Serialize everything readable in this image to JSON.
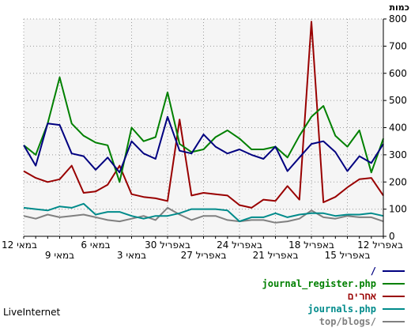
{
  "chart_data": {
    "type": "line",
    "ylabel": "כמות",
    "ylim": [
      0,
      800
    ],
    "yticks": [
      0,
      100,
      200,
      300,
      400,
      500,
      600,
      700,
      800
    ],
    "grid": true,
    "x": [
      "12 במאי",
      "11 במאי",
      "10 במאי",
      "9 במאי",
      "8 במאי",
      "7 במאי",
      "6 במאי",
      "5 במאי",
      "4 במאי",
      "3 במאי",
      "2 במאי",
      "1 במאי",
      "30 באפריל",
      "29 באפריל",
      "28 באפריל",
      "27 באפריל",
      "26 באפריל",
      "25 באפריל",
      "24 באפריל",
      "23 באפריל",
      "22 באפריל",
      "21 באפריל",
      "20 באפריל",
      "19 באפריל",
      "18 באפריל",
      "17 באפריל",
      "16 באפריל",
      "15 באפריל",
      "14 באפריל",
      "13 באפריל",
      "12 באפריל"
    ],
    "xtick_labels": [
      {
        "index": 0,
        "label": "12 במאי"
      },
      {
        "index": 3,
        "label": "9 במאי"
      },
      {
        "index": 6,
        "label": "6 במאי"
      },
      {
        "index": 9,
        "label": "3 במאי"
      },
      {
        "index": 12,
        "label": "30 באפריל"
      },
      {
        "index": 15,
        "label": "27 באפריל"
      },
      {
        "index": 18,
        "label": "24 באפריל"
      },
      {
        "index": 21,
        "label": "21 באפריל"
      },
      {
        "index": 24,
        "label": "18 באפריל"
      },
      {
        "index": 27,
        "label": "15 באפריל"
      },
      {
        "index": 30,
        "label": "12 באפריל"
      }
    ],
    "series": [
      {
        "name": "/",
        "color": "#000080",
        "values": [
          335,
          260,
          415,
          410,
          305,
          295,
          245,
          290,
          235,
          350,
          305,
          285,
          440,
          315,
          305,
          375,
          330,
          305,
          320,
          300,
          285,
          330,
          240,
          290,
          340,
          350,
          310,
          240,
          295,
          270,
          340
        ]
      },
      {
        "name": "journal_register.php",
        "color": "#008000",
        "values": [
          335,
          300,
          415,
          585,
          415,
          370,
          345,
          335,
          200,
          400,
          350,
          365,
          530,
          340,
          310,
          320,
          365,
          390,
          360,
          320,
          320,
          330,
          290,
          370,
          440,
          480,
          370,
          330,
          390,
          235,
          360
        ]
      },
      {
        "name": "אחרים",
        "color": "#990000",
        "values": [
          240,
          215,
          200,
          210,
          260,
          160,
          165,
          190,
          260,
          155,
          145,
          140,
          130,
          430,
          150,
          160,
          155,
          150,
          115,
          105,
          135,
          130,
          185,
          135,
          790,
          125,
          145,
          180,
          210,
          215,
          150
        ]
      },
      {
        "name": "journals.php",
        "color": "#008b8b",
        "values": [
          105,
          100,
          95,
          110,
          105,
          120,
          80,
          90,
          90,
          75,
          65,
          75,
          75,
          85,
          100,
          100,
          100,
          95,
          55,
          70,
          70,
          85,
          70,
          80,
          85,
          85,
          75,
          80,
          80,
          85,
          75
        ]
      },
      {
        "name": "top/blogs/",
        "color": "#808080",
        "values": [
          75,
          65,
          80,
          70,
          75,
          80,
          70,
          60,
          55,
          65,
          75,
          60,
          105,
          80,
          60,
          75,
          75,
          60,
          55,
          60,
          60,
          50,
          55,
          65,
          95,
          70,
          65,
          75,
          70,
          70,
          55
        ]
      }
    ]
  },
  "brand": "LiveInternet"
}
